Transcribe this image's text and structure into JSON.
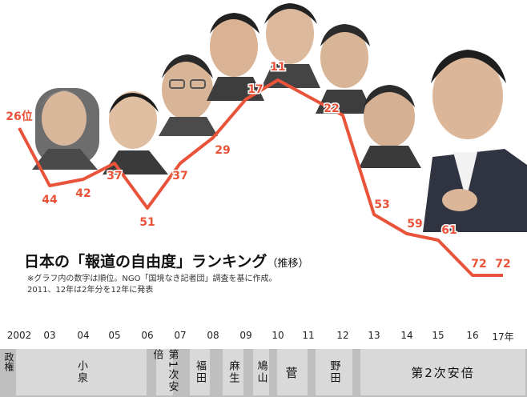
{
  "chart_data": {
    "type": "line",
    "title": "日本の「報道の自由度」ランキング",
    "subtitle": "（推移）",
    "notes": [
      "※グラフ内の数字は順位。NGO「国境なき記者団」調査を基に作成。",
      "2011、12年は2年分を12年に発表"
    ],
    "x": [
      "2002",
      "03",
      "04",
      "05",
      "06",
      "07",
      "08",
      "09",
      "10",
      "11",
      "12",
      "13",
      "14",
      "15",
      "16",
      "17年"
    ],
    "series": [
      {
        "values": [
          26,
          44,
          42,
          37,
          51,
          37,
          29,
          17,
          11,
          null,
          22,
          53,
          59,
          61,
          72,
          72
        ]
      }
    ],
    "point_labels": [
      "26位",
      "44",
      "42",
      "37",
      "51",
      "37",
      "29",
      "17",
      "11",
      "",
      "22",
      "53",
      "59",
      "61",
      "72",
      "72"
    ],
    "y_inverted": true,
    "ylim": [
      5,
      75
    ],
    "color": "#e8533a"
  },
  "governments_label": "政権",
  "governments": [
    {
      "name": "小泉"
    },
    {
      "name": "第1次安倍"
    },
    {
      "name": "福田"
    },
    {
      "name": "麻生"
    },
    {
      "name": "鳩山"
    },
    {
      "name": "菅"
    },
    {
      "name": "野田"
    },
    {
      "name": "第2次安倍"
    }
  ]
}
